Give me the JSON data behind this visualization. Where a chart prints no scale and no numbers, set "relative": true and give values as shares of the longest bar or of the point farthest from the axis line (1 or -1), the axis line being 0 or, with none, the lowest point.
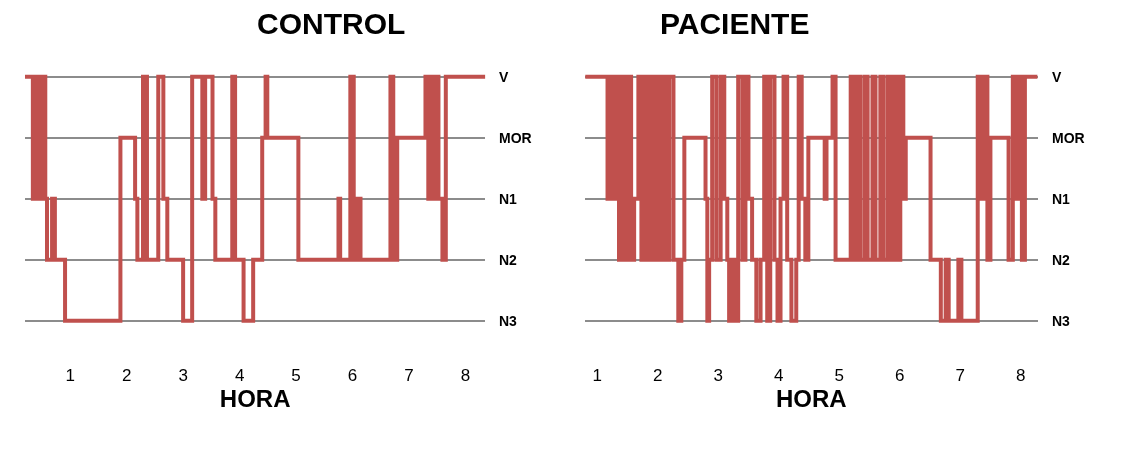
{
  "chart_data": [
    {
      "type": "step",
      "title": "CONTROL",
      "xlabel": "HORA",
      "color": "#c0504d",
      "grid": "y",
      "legend": false,
      "relative": true,
      "x": [
        0.2,
        0.34,
        0.38,
        0.42,
        0.45,
        0.49,
        0.52,
        0.56,
        0.59,
        0.68,
        0.73,
        0.91,
        1.89,
        2.15,
        2.19,
        2.29,
        2.36,
        2.56,
        2.65,
        2.72,
        3.0,
        3.16,
        3.34,
        3.39,
        3.52,
        3.57,
        3.87,
        3.92,
        4.07,
        4.24,
        4.4,
        4.46,
        4.49,
        5.04,
        5.75,
        5.78,
        5.96,
        6.02,
        6.09,
        6.14,
        6.67,
        6.72,
        6.79,
        7.29,
        7.34,
        7.38,
        7.43,
        7.49,
        7.52,
        7.59,
        7.65,
        8.35
      ],
      "values": [
        1,
        0.5,
        1,
        0.5,
        1,
        0.5,
        1,
        0.5,
        0.25,
        0.5,
        0.25,
        0,
        0.75,
        0.5,
        0.25,
        1,
        0.25,
        1,
        0.5,
        0.25,
        0,
        1,
        0.5,
        1,
        0.5,
        0.25,
        1,
        0.25,
        0,
        0.25,
        0.75,
        1,
        0.75,
        0.25,
        0.5,
        0.25,
        1,
        0.25,
        0.5,
        0.25,
        1,
        0.25,
        0.75,
        1,
        0.5,
        1,
        0.5,
        1,
        0.5,
        0.25,
        1,
        1
      ],
      "xlim": [
        0.2,
        8.35
      ],
      "xticks": [
        1,
        2,
        3,
        4,
        5,
        6,
        7,
        8
      ],
      "annotations": [
        "V",
        "MOR",
        "N1",
        "N2",
        "N3"
      ]
    },
    {
      "type": "step",
      "title": "PACIENTE",
      "xlabel": "HORA",
      "color": "#c0504d",
      "grid": "y",
      "legend": false,
      "relative": true,
      "x": [
        0.8,
        1.17,
        1.22,
        1.26,
        1.31,
        1.36,
        1.41,
        1.46,
        1.51,
        1.56,
        1.61,
        1.68,
        1.73,
        1.78,
        1.83,
        1.88,
        1.93,
        1.98,
        2.03,
        2.08,
        2.14,
        2.19,
        2.26,
        2.34,
        2.39,
        2.44,
        2.79,
        2.82,
        2.85,
        2.9,
        2.97,
        3.04,
        3.1,
        3.15,
        3.18,
        3.23,
        3.28,
        3.33,
        3.4,
        3.45,
        3.5,
        3.56,
        3.63,
        3.7,
        3.76,
        3.81,
        3.86,
        3.93,
        3.98,
        4.03,
        4.08,
        4.14,
        4.21,
        4.29,
        4.33,
        4.38,
        4.44,
        4.49,
        4.76,
        4.79,
        4.89,
        4.94,
        5.19,
        5.24,
        5.3,
        5.35,
        5.42,
        5.47,
        5.55,
        5.6,
        5.68,
        5.73,
        5.8,
        5.85,
        5.91,
        5.96,
        6.01,
        6.06,
        6.1,
        6.51,
        6.68,
        6.76,
        6.81,
        6.97,
        7.02,
        7.29,
        7.34,
        7.39,
        7.45,
        7.5,
        7.8,
        7.87,
        7.92,
        7.97,
        8.02,
        8.07,
        8.28
      ],
      "values": [
        1,
        0.5,
        1,
        0.5,
        1,
        0.25,
        1,
        0.25,
        1,
        0.25,
        0.5,
        1,
        0.25,
        1,
        0.25,
        1,
        0.25,
        1,
        0.25,
        1,
        0.25,
        1,
        0.25,
        0,
        0.25,
        0.75,
        0.5,
        0,
        0.25,
        1,
        0.25,
        1,
        0.5,
        0.25,
        0,
        0.25,
        0,
        1,
        0.25,
        1,
        0.5,
        0.25,
        0,
        0.25,
        1,
        0,
        1,
        0.25,
        0,
        0.5,
        1,
        0.25,
        0,
        0.25,
        1,
        0.5,
        0.25,
        0.75,
        0.5,
        0.75,
        1,
        0.25,
        1,
        0.25,
        1,
        0.25,
        1,
        0.25,
        1,
        0.25,
        1,
        0.25,
        1,
        0.25,
        1,
        0.25,
        1,
        0.5,
        0.75,
        0.25,
        0,
        0.25,
        0,
        0.25,
        0,
        1,
        0.5,
        1,
        0.25,
        0.75,
        0.25,
        1,
        0.5,
        1,
        0.25,
        1,
        1
      ],
      "xlim": [
        0.8,
        8.28
      ],
      "xticks": [
        1,
        2,
        3,
        4,
        5,
        6,
        7,
        8
      ],
      "annotations": [
        "V",
        "MOR",
        "N1",
        "N2",
        "N3"
      ]
    }
  ]
}
